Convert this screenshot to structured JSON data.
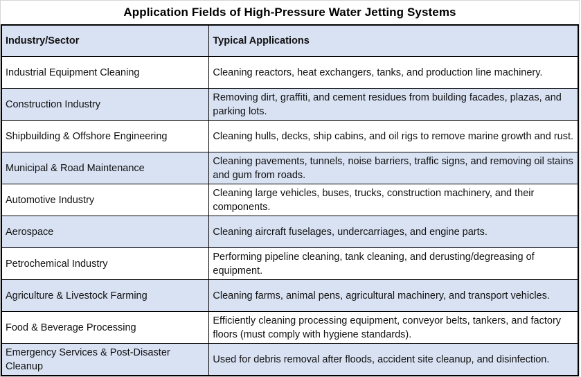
{
  "title": "Application Fields of High-Pressure Water Jetting Systems",
  "colors": {
    "header_row_bg": "#d9e2f3",
    "alt_row_bg": "#d9e2f3",
    "row_bg": "#ffffff",
    "border": "#000000",
    "text": "#111111"
  },
  "table": {
    "headers": {
      "sector": "Industry/Sector",
      "applications": "Typical Applications"
    },
    "rows": [
      {
        "sector": "Industrial Equipment Cleaning",
        "applications": "Cleaning reactors, heat exchangers, tanks, and production line machinery."
      },
      {
        "sector": "Construction Industry",
        "applications": "Removing dirt, graffiti, and cement residues from building facades, plazas, and parking lots."
      },
      {
        "sector": "Shipbuilding & Offshore Engineering",
        "applications": "Cleaning hulls, decks, ship cabins, and oil rigs to remove marine growth and rust."
      },
      {
        "sector": "Municipal & Road Maintenance",
        "applications": "Cleaning pavements, tunnels, noise barriers, traffic signs, and removing oil stains and gum from roads."
      },
      {
        "sector": "Automotive Industry",
        "applications": "Cleaning large vehicles, buses, trucks, construction machinery, and their components."
      },
      {
        "sector": "Aerospace",
        "applications": "Cleaning aircraft fuselages, undercarriages, and engine parts."
      },
      {
        "sector": "Petrochemical Industry",
        "applications": "Performing pipeline cleaning, tank cleaning, and derusting/degreasing of equipment."
      },
      {
        "sector": "Agriculture & Livestock Farming",
        "applications": "Cleaning farms, animal pens, agricultural machinery, and transport vehicles."
      },
      {
        "sector": "Food & Beverage Processing",
        "applications": "Efficiently cleaning processing equipment, conveyor belts, tankers, and factory floors (must comply with hygiene standards)."
      },
      {
        "sector": "Emergency Services & Post-Disaster Cleanup",
        "applications": "Used for debris removal after floods, accident site cleanup, and disinfection."
      }
    ]
  }
}
